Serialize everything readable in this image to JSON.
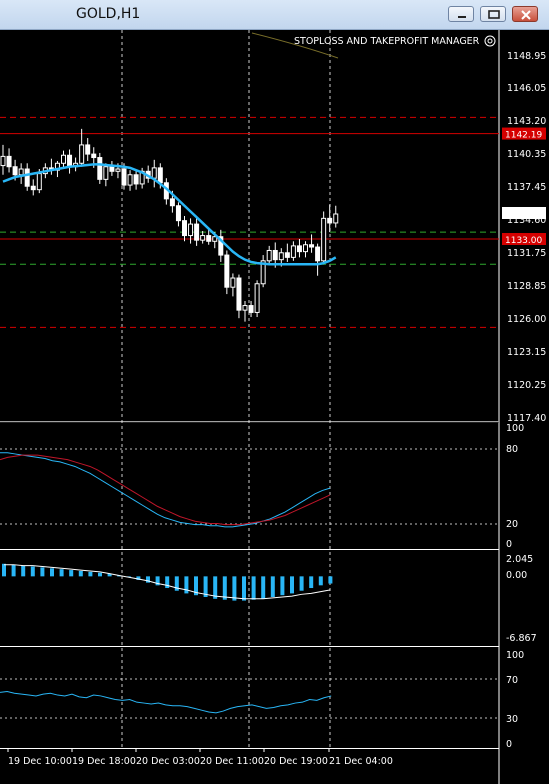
{
  "window": {
    "title": "GOLD,H1"
  },
  "manager_label": "STOPLOSS AND TAKEPROFIT MANAGER",
  "colors": {
    "bull": "#ffffff",
    "bear": "#ffffff",
    "ma": "#29b6f6",
    "stop_line": "#d50000",
    "grid": "#ffffff",
    "green_level": "#2ea82e"
  },
  "price_axis": {
    "ticks": [
      "1148.95",
      "1146.05",
      "1143.20",
      "1140.35",
      "1137.45",
      "1134.60",
      "1131.75",
      "1128.85",
      "1126.00",
      "1123.15",
      "1120.25",
      "1117.40"
    ],
    "current_price": "1135.18",
    "level_upper": "1142.19",
    "level_lower": "1133.00"
  },
  "stoch_axis": {
    "ticks": [
      "100",
      "80",
      "20",
      "0"
    ]
  },
  "macd_axis": {
    "ticks": [
      "2.045",
      "0.00",
      "-6.867"
    ]
  },
  "rsi_axis": {
    "ticks": [
      "100",
      "70",
      "30",
      "0"
    ]
  },
  "time_axis": {
    "ticks": [
      "19 Dec 10:00",
      "19 Dec 18:00",
      "20 Dec 03:00",
      "20 Dec 11:00",
      "20 Dec 19:00",
      "21 Dec 04:00"
    ]
  },
  "chart_data": {
    "type": "candlestick",
    "symbol": "GOLD",
    "timeframe": "H1",
    "candles": [
      [
        1139.4,
        1141.2,
        1138.6,
        1140.2
      ],
      [
        1140.2,
        1140.9,
        1138.8,
        1139.3
      ],
      [
        1139.3,
        1139.9,
        1138.1,
        1138.6
      ],
      [
        1138.6,
        1139.6,
        1137.8,
        1139.1
      ],
      [
        1139.1,
        1139.6,
        1137.2,
        1137.6
      ],
      [
        1137.6,
        1138.2,
        1136.8,
        1137.3
      ],
      [
        1137.3,
        1139.1,
        1137.0,
        1138.7
      ],
      [
        1138.7,
        1139.6,
        1138.3,
        1139.2
      ],
      [
        1139.2,
        1140.0,
        1138.6,
        1139.0
      ],
      [
        1139.0,
        1139.8,
        1138.4,
        1139.6
      ],
      [
        1139.6,
        1140.7,
        1139.2,
        1140.3
      ],
      [
        1140.3,
        1140.8,
        1138.7,
        1139.3
      ],
      [
        1139.3,
        1140.1,
        1138.9,
        1139.6
      ],
      [
        1139.6,
        1142.6,
        1139.3,
        1141.2
      ],
      [
        1141.2,
        1141.8,
        1139.8,
        1140.4
      ],
      [
        1140.4,
        1141.0,
        1139.2,
        1140.1
      ],
      [
        1140.1,
        1140.5,
        1137.8,
        1138.2
      ],
      [
        1138.2,
        1139.6,
        1137.6,
        1139.3
      ],
      [
        1139.3,
        1139.8,
        1138.5,
        1138.9
      ],
      [
        1138.9,
        1139.6,
        1138.3,
        1139.1
      ],
      [
        1139.1,
        1139.6,
        1137.3,
        1137.7
      ],
      [
        1137.7,
        1139.0,
        1137.2,
        1138.6
      ],
      [
        1138.6,
        1139.0,
        1137.3,
        1137.8
      ],
      [
        1137.8,
        1139.2,
        1137.4,
        1138.9
      ],
      [
        1138.9,
        1139.4,
        1137.9,
        1138.3
      ],
      [
        1138.3,
        1139.9,
        1137.5,
        1139.2
      ],
      [
        1139.2,
        1139.6,
        1137.4,
        1137.9
      ],
      [
        1137.9,
        1138.3,
        1136.0,
        1136.5
      ],
      [
        1136.5,
        1137.2,
        1135.3,
        1135.9
      ],
      [
        1135.9,
        1136.2,
        1134.1,
        1134.6
      ],
      [
        1134.6,
        1135.0,
        1132.8,
        1133.3
      ],
      [
        1133.3,
        1134.8,
        1132.6,
        1134.3
      ],
      [
        1134.3,
        1134.9,
        1132.4,
        1132.9
      ],
      [
        1132.9,
        1133.7,
        1132.6,
        1133.3
      ],
      [
        1133.3,
        1134.0,
        1132.5,
        1132.8
      ],
      [
        1132.8,
        1133.6,
        1132.2,
        1133.2
      ],
      [
        1133.2,
        1133.8,
        1131.0,
        1131.6
      ],
      [
        1131.6,
        1132.0,
        1128.2,
        1128.8
      ],
      [
        1128.8,
        1130.0,
        1128.0,
        1129.6
      ],
      [
        1129.6,
        1129.9,
        1126.1,
        1126.8
      ],
      [
        1126.8,
        1127.6,
        1125.8,
        1127.2
      ],
      [
        1127.2,
        1127.6,
        1126.2,
        1126.6
      ],
      [
        1126.6,
        1129.4,
        1126.2,
        1129.1
      ],
      [
        1129.1,
        1131.6,
        1128.8,
        1131.1
      ],
      [
        1131.1,
        1132.4,
        1130.8,
        1132.0
      ],
      [
        1132.0,
        1132.7,
        1130.5,
        1131.2
      ],
      [
        1131.2,
        1132.2,
        1130.6,
        1131.8
      ],
      [
        1131.8,
        1132.6,
        1131.0,
        1131.4
      ],
      [
        1131.4,
        1132.8,
        1131.1,
        1132.4
      ],
      [
        1132.4,
        1133.0,
        1131.4,
        1131.9
      ],
      [
        1131.9,
        1132.8,
        1131.4,
        1132.5
      ],
      [
        1132.5,
        1133.4,
        1131.8,
        1132.3
      ],
      [
        1132.3,
        1132.6,
        1129.8,
        1131.1
      ],
      [
        1131.1,
        1135.4,
        1130.8,
        1134.8
      ],
      [
        1134.8,
        1136.0,
        1133.6,
        1134.4
      ],
      [
        1134.4,
        1135.9,
        1134.0,
        1135.18
      ]
    ],
    "ma": [
      1138.0,
      1138.2,
      1138.4,
      1138.5,
      1138.6,
      1138.7,
      1138.8,
      1138.9,
      1139.0,
      1139.1,
      1139.2,
      1139.3,
      1139.35,
      1139.4,
      1139.45,
      1139.5,
      1139.5,
      1139.45,
      1139.4,
      1139.35,
      1139.3,
      1139.2,
      1139.0,
      1138.8,
      1138.5,
      1138.2,
      1137.8,
      1137.4,
      1136.9,
      1136.4,
      1135.9,
      1135.4,
      1134.9,
      1134.4,
      1133.9,
      1133.4,
      1132.9,
      1132.4,
      1131.9,
      1131.5,
      1131.2,
      1131.0,
      1130.9,
      1130.85,
      1130.8,
      1130.8,
      1130.8,
      1130.8,
      1130.8,
      1130.8,
      1130.8,
      1130.8,
      1130.8,
      1130.9,
      1131.1,
      1131.4
    ],
    "levels": {
      "tp_dashed_upper": 1143.6,
      "level_upper": 1142.19,
      "green_upper": 1133.6,
      "level_lower": 1133.0,
      "green_lower": 1130.8,
      "sl_dashed_lower": 1125.3
    },
    "stochastic": {
      "main": [
        80,
        80,
        79,
        78,
        77,
        76,
        75,
        73,
        72,
        70,
        68,
        65,
        62,
        58,
        54,
        50,
        46,
        42,
        38,
        34,
        30,
        26,
        23,
        21,
        19,
        18,
        17,
        17,
        16,
        16,
        15,
        15,
        16,
        17,
        18,
        20,
        22,
        25,
        28,
        32,
        36,
        40,
        44,
        47,
        49
      ],
      "signal": [
        74,
        76,
        77,
        78,
        78,
        78,
        77,
        76,
        75,
        74,
        72,
        70,
        68,
        65,
        61,
        57,
        53,
        49,
        45,
        41,
        37,
        33,
        30,
        27,
        24,
        22,
        20,
        19,
        18,
        18,
        17,
        17,
        17,
        18,
        19,
        20,
        21,
        23,
        25,
        28,
        31,
        34,
        37,
        40,
        43
      ],
      "levels": [
        80,
        20
      ],
      "range": [
        0,
        100
      ]
    },
    "macd": {
      "histogram": [
        1.4,
        1.3,
        1.2,
        1.1,
        1.0,
        0.9,
        0.8,
        0.7,
        0.6,
        0.5,
        0.4,
        0.3,
        0.1,
        -0.1,
        -0.4,
        -0.7,
        -1.0,
        -1.3,
        -1.6,
        -1.9,
        -2.1,
        -2.3,
        -2.5,
        -2.6,
        -2.7,
        -2.7,
        -2.6,
        -2.5,
        -2.3,
        -2.1,
        -1.9,
        -1.6,
        -1.3,
        -1.0,
        -0.8
      ],
      "signal": [
        1.3,
        1.3,
        1.2,
        1.2,
        1.1,
        1.0,
        0.9,
        0.8,
        0.7,
        0.6,
        0.5,
        0.3,
        0.1,
        -0.1,
        -0.3,
        -0.5,
        -0.8,
        -1.0,
        -1.3,
        -1.5,
        -1.8,
        -2.0,
        -2.2,
        -2.3,
        -2.4,
        -2.5,
        -2.5,
        -2.5,
        -2.4,
        -2.3,
        -2.2,
        -2.0,
        -1.9,
        -1.7,
        -1.5
      ],
      "range": [
        -6.867,
        2.045
      ]
    },
    "rsi": {
      "values": [
        58,
        59,
        57,
        56,
        55,
        54,
        56,
        57,
        55,
        54,
        56,
        53,
        52,
        55,
        54,
        52,
        50,
        49,
        50,
        47,
        46,
        45,
        46,
        44,
        43,
        43,
        42,
        40,
        38,
        36,
        35,
        37,
        40,
        42,
        43,
        44,
        42,
        40,
        41,
        43,
        44,
        46,
        47,
        50,
        49,
        52,
        54
      ],
      "levels": [
        70,
        30
      ],
      "range": [
        0,
        100
      ]
    }
  }
}
